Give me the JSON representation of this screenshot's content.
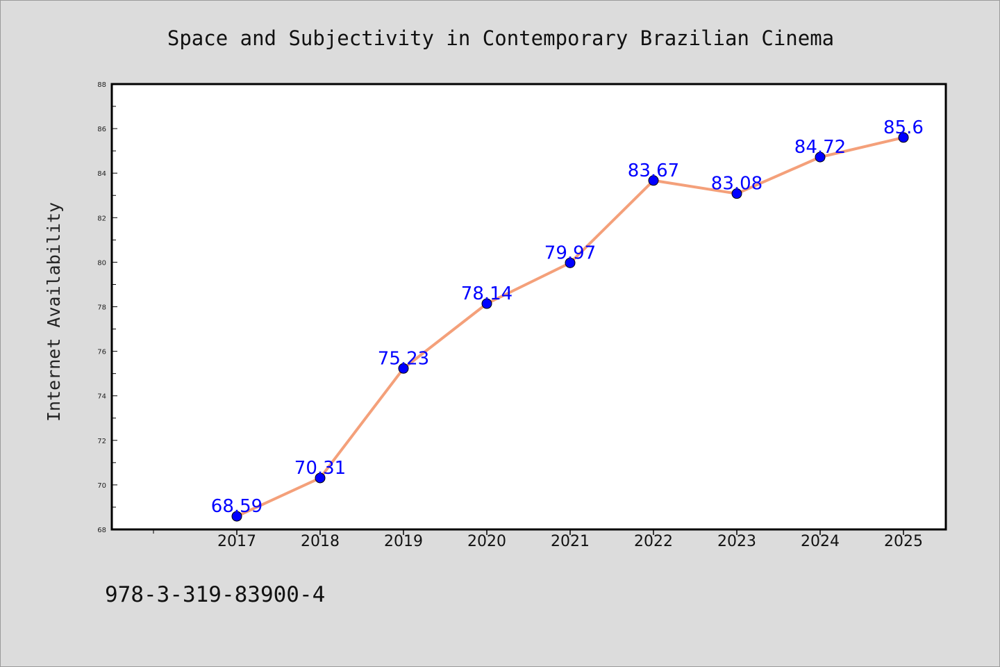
{
  "chart_data": {
    "type": "line",
    "title": "Space and Subjectivity in Contemporary Brazilian Cinema",
    "xlabel": "",
    "ylabel": "Internet Availability",
    "x": [
      "2017",
      "2018",
      "2019",
      "2020",
      "2021",
      "2022",
      "2023",
      "2024",
      "2025"
    ],
    "series": [
      {
        "values": [
          68.59,
          70.31,
          75.23,
          78.14,
          79.97,
          83.67,
          83.08,
          84.72,
          85.6
        ],
        "labels": [
          "68.59",
          "70.31",
          "75.23",
          "78.14",
          "79.97",
          "83.67",
          "83.08",
          "84.72",
          "85.6"
        ]
      }
    ],
    "ylim": [
      68,
      88
    ],
    "yticks": [
      "68",
      "70",
      "72",
      "74",
      "76",
      "78",
      "80",
      "82",
      "84",
      "86",
      "88"
    ],
    "grid": false,
    "colors": {
      "line": "#f4a07a",
      "marker": "#0000ff",
      "label": "#0000ff",
      "background": "#dcdcdc",
      "plot_background": "#ffffff"
    }
  },
  "footer_text": "978-3-319-83900-4"
}
